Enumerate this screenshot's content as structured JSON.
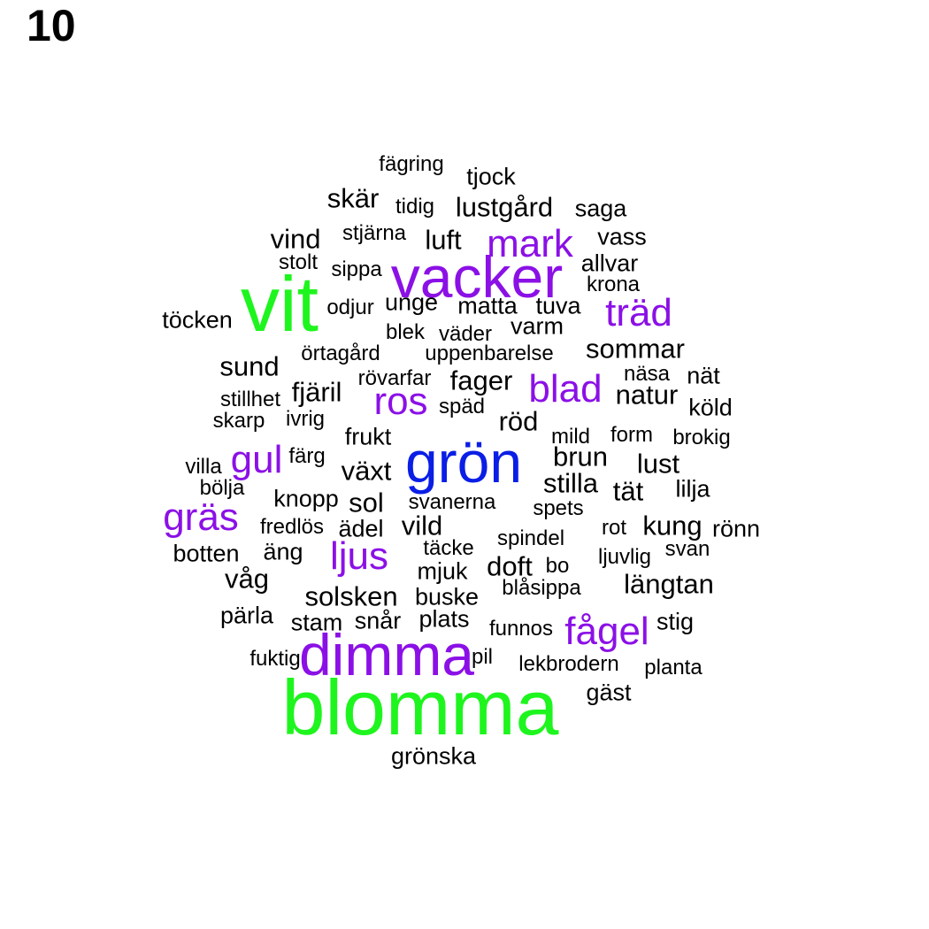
{
  "panel_number": "10",
  "colors": {
    "black": "#000000",
    "purple": "#8b10e6",
    "blue": "#0a1ee6",
    "green": "#1ef51e"
  },
  "words": [
    "fägring",
    "tjock",
    "skär",
    "tidig",
    "lustgård",
    "saga",
    "vind",
    "stjärna",
    "luft",
    "mark",
    "vass",
    "stolt",
    "sippa",
    "vacker",
    "allvar",
    "krona",
    "vit",
    "odjur",
    "unge",
    "matta",
    "tuva",
    "träd",
    "töcken",
    "blek",
    "väder",
    "varm",
    "sommar",
    "örtagård",
    "uppenbarelse",
    "sund",
    "näsa",
    "nät",
    "rövarfar",
    "fager",
    "stillhet",
    "fjäril",
    "blad",
    "natur",
    "ros",
    "späd",
    "köld",
    "skarp",
    "ivrig",
    "röd",
    "frukt",
    "mild",
    "form",
    "brokig",
    "villa",
    "gul",
    "färg",
    "grön",
    "brun",
    "lust",
    "växt",
    "stilla",
    "bölja",
    "tät",
    "lilja",
    "knopp",
    "sol",
    "svanerna",
    "spets",
    "gräs",
    "fredlös",
    "ädel",
    "vild",
    "rot",
    "kung",
    "rönn",
    "spindel",
    "täcke",
    "botten",
    "äng",
    "ljus",
    "svan",
    "ljuvlig",
    "doft",
    "mjuk",
    "bo",
    "våg",
    "blåsippa",
    "längtan",
    "solsken",
    "buske",
    "pärla",
    "stam",
    "snår",
    "plats",
    "stig",
    "funnos",
    "fågel",
    "fuktig",
    "dimma",
    "pil",
    "lekbrodern",
    "planta",
    "gäst",
    "blomma",
    "grönska"
  ]
}
